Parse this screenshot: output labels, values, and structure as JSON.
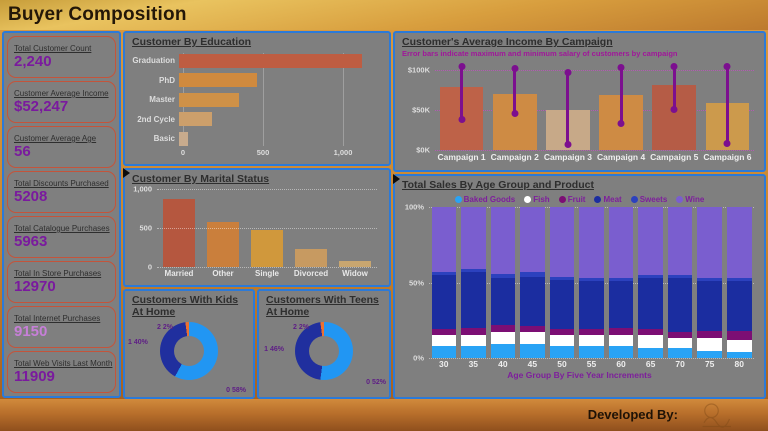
{
  "header": {
    "title": "Buyer Composition"
  },
  "footer": {
    "developed_by": "Developed By:",
    "logo_icon": "developer-signature-logo"
  },
  "colors": {
    "panel_bg": "#7f7f7f",
    "panel_border": "#2c7ad8",
    "kpi_card_border": "#c4543b",
    "kpi_value": "#7a1a9e",
    "kpi_value_alt": "#c77fd8",
    "title_text": "#2e2e2e",
    "axis_text": "#e0e0e0",
    "purple_text": "#7e1f9c"
  },
  "kpis": [
    {
      "label": "Total Customer Count",
      "value": "2,240"
    },
    {
      "label": "Customer Average Income",
      "value": "$52,247"
    },
    {
      "label": "Customer Average Age",
      "value": "56"
    },
    {
      "label": "Total Discounts Purchased",
      "value": "5208"
    },
    {
      "label": "Total Catalogue Purchases",
      "value": "5963"
    },
    {
      "label": "Total In Store Purchases",
      "value": "12970"
    },
    {
      "label": "Total Internet Purchases",
      "value": "9150",
      "value_color": "#c77fd8"
    },
    {
      "label": "Total Web Visits Last Month",
      "value": "11909"
    }
  ],
  "chart_data": [
    {
      "id": "education",
      "type": "bar",
      "orientation": "horizontal",
      "title": "Customer By Education",
      "categories": [
        "Graduation",
        "PhD",
        "Master",
        "2nd Cycle",
        "Basic"
      ],
      "values": [
        1120,
        480,
        370,
        200,
        54
      ],
      "xlim": [
        0,
        1200
      ],
      "x_ticks": {
        "values": [
          0,
          500,
          1000
        ],
        "labels": [
          "0",
          "500",
          "1,000"
        ]
      },
      "bar_colors": [
        "#be5d42",
        "#d08a3e",
        "#ce9148",
        "#cc9f6b",
        "#c8ab8d"
      ],
      "grid": true,
      "legend_position": "none"
    },
    {
      "id": "marital_status",
      "type": "bar",
      "title": "Customer By Marital Status",
      "categories": [
        "Married",
        "Other",
        "Single",
        "Divorced",
        "Widow"
      ],
      "values": [
        870,
        580,
        480,
        230,
        76
      ],
      "ylim": [
        0,
        1000
      ],
      "y_ticks": {
        "values": [
          0,
          500,
          1000
        ],
        "labels": [
          "0",
          "500",
          "1,000"
        ]
      },
      "bar_colors": [
        "#b5573f",
        "#ca7f3c",
        "#d0983c",
        "#c79a61",
        "#c8a670"
      ],
      "grid": true,
      "legend_position": "none"
    },
    {
      "id": "kids_at_home",
      "type": "pie",
      "title": "Customers With Kids At Home",
      "categories": [
        "0",
        "1",
        "2"
      ],
      "values": [
        58,
        40,
        2
      ],
      "labels": [
        "0 58%",
        "1 40%",
        "2 2%"
      ],
      "slice_colors": [
        "#2196f3",
        "#202f9e",
        "#e97132"
      ]
    },
    {
      "id": "teens_at_home",
      "type": "pie",
      "title": "Customers With Teens At Home",
      "categories": [
        "0",
        "1",
        "2"
      ],
      "values": [
        52,
        46,
        2
      ],
      "labels": [
        "0 52%",
        "1 46%",
        "2 2%"
      ],
      "slice_colors": [
        "#2196f3",
        "#202f9e",
        "#e97132"
      ]
    },
    {
      "id": "campaign_income",
      "type": "bar",
      "title": "Customer's Average Income By Campaign",
      "subtitle": "Error bars indicate maximum and minimum salary of customers by campaign",
      "categories": [
        "Campaign 1",
        "Campaign 2",
        "Campaign 3",
        "Campaign 4",
        "Campaign 5",
        "Campaign 6"
      ],
      "values": [
        78,
        70,
        50,
        68,
        81,
        59
      ],
      "value_unit": "$K",
      "error_min": [
        37,
        45,
        6,
        32,
        50,
        8
      ],
      "error_max": [
        105,
        102,
        97,
        103,
        105,
        105
      ],
      "ylim": [
        0,
        112
      ],
      "y_ticks": {
        "values": [
          0,
          50,
          100
        ],
        "labels": [
          "$0K",
          "$50K",
          "$100K"
        ]
      },
      "bar_colors": [
        "#be6248",
        "#ce8b44",
        "#c7a988",
        "#ce8b44",
        "#b55c46",
        "#cc9a4c"
      ],
      "error_bar_color": "#7c0f8f",
      "grid": true,
      "legend_position": "none"
    },
    {
      "id": "sales_by_age_product",
      "type": "bar",
      "stacked": "percent",
      "title": "Total Sales By Age Group and Product",
      "xlabel": "Age Group By Five Year Increments",
      "categories": [
        "30",
        "35",
        "40",
        "45",
        "50",
        "55",
        "60",
        "65",
        "70",
        "75",
        "80"
      ],
      "series": [
        {
          "name": "Baked Goods",
          "color": "#29a3f5",
          "values": [
            8,
            8,
            9,
            9,
            8,
            8,
            8,
            7,
            7,
            5,
            4
          ]
        },
        {
          "name": "Fish",
          "color": "#ffffff",
          "values": [
            7,
            7,
            8,
            8,
            7,
            7,
            7,
            8,
            6,
            8,
            8
          ]
        },
        {
          "name": "Fruit",
          "color": "#7c0e74",
          "values": [
            4,
            5,
            5,
            4,
            4,
            4,
            5,
            4,
            4,
            5,
            6
          ]
        },
        {
          "name": "Meat",
          "color": "#1b2da0",
          "values": [
            36,
            37,
            31,
            33,
            33,
            32,
            31,
            34,
            36,
            33,
            33
          ]
        },
        {
          "name": "Sweets",
          "color": "#2c41be",
          "values": [
            2,
            2,
            3,
            3,
            2,
            2,
            2,
            2,
            2,
            2,
            2
          ]
        },
        {
          "name": "Wine",
          "color": "#7a5ecf",
          "values": [
            43,
            41,
            44,
            43,
            46,
            47,
            47,
            45,
            45,
            47,
            47
          ]
        }
      ],
      "ylim": [
        0,
        100
      ],
      "y_ticks": {
        "values": [
          0,
          50,
          100
        ],
        "labels": [
          "0%",
          "50%",
          "100%"
        ]
      },
      "grid": true,
      "legend_position": "top"
    }
  ]
}
